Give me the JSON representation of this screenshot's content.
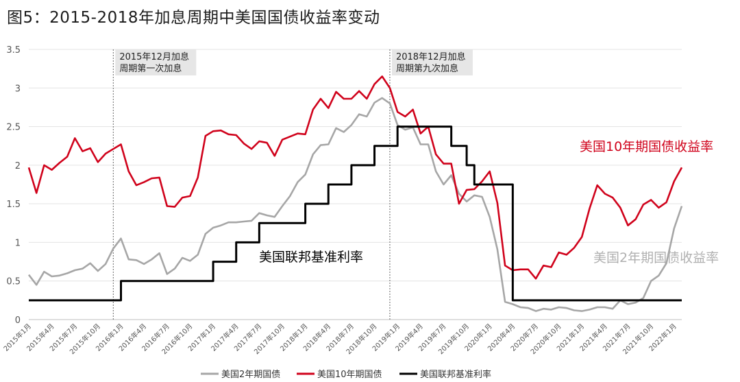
{
  "title": "图5：2015-2018年加息周期中美国国债收益率变动",
  "chart_data": {
    "type": "line",
    "title": "图5：2015-2018年加息周期中美国国债收益率变动",
    "ylim": [
      0,
      3.5
    ],
    "yticks": [
      "0",
      "0.5",
      "1",
      "1.5",
      "2",
      "2.5",
      "3",
      "3.5"
    ],
    "x_start": "2015年1月",
    "xtick_labels": [
      "2015年1月",
      "2015年4月",
      "2015年7月",
      "2015年10月",
      "2016年1月",
      "2016年4月",
      "2016年7月",
      "2016年10月",
      "2017年1月",
      "2017年4月",
      "2017年7月",
      "2017年10月",
      "2018年1月",
      "2018年4月",
      "2018年7月",
      "2018年10月",
      "2019年1月",
      "2019年4月",
      "2019年7月",
      "2019年10月",
      "2020年1月",
      "2020年4月",
      "2020年7月",
      "2020年10月",
      "2021年1月",
      "2021年4月",
      "2021年7月",
      "2021年10月",
      "2022年1月"
    ],
    "grid": "horizontal",
    "legend_position": "bottom",
    "series": [
      {
        "name": "美国2年期国债",
        "color": "#a6a6a6",
        "values": [
          0.58,
          0.45,
          0.62,
          0.56,
          0.57,
          0.6,
          0.64,
          0.66,
          0.73,
          0.63,
          0.72,
          0.92,
          1.05,
          0.78,
          0.77,
          0.72,
          0.78,
          0.86,
          0.59,
          0.66,
          0.8,
          0.76,
          0.84,
          1.11,
          1.19,
          1.22,
          1.26,
          1.26,
          1.27,
          1.28,
          1.38,
          1.35,
          1.33,
          1.47,
          1.6,
          1.78,
          1.88,
          2.14,
          2.26,
          2.27,
          2.48,
          2.43,
          2.52,
          2.66,
          2.63,
          2.81,
          2.87,
          2.8,
          2.52,
          2.46,
          2.49,
          2.27,
          2.27,
          1.92,
          1.75,
          1.87,
          1.63,
          1.53,
          1.61,
          1.59,
          1.33,
          0.91,
          0.23,
          0.2,
          0.16,
          0.15,
          0.11,
          0.14,
          0.13,
          0.16,
          0.15,
          0.12,
          0.11,
          0.13,
          0.16,
          0.16,
          0.14,
          0.25,
          0.2,
          0.22,
          0.28,
          0.5,
          0.57,
          0.73,
          1.18,
          1.47
        ]
      },
      {
        "name": "美国10年期国债",
        "color": "#d0021b",
        "values": [
          1.97,
          1.64,
          2.0,
          1.94,
          2.03,
          2.11,
          2.35,
          2.18,
          2.22,
          2.04,
          2.15,
          2.21,
          2.27,
          1.92,
          1.74,
          1.78,
          1.83,
          1.84,
          1.47,
          1.46,
          1.58,
          1.6,
          1.84,
          2.38,
          2.44,
          2.45,
          2.4,
          2.39,
          2.28,
          2.21,
          2.31,
          2.29,
          2.12,
          2.33,
          2.37,
          2.41,
          2.4,
          2.72,
          2.86,
          2.74,
          2.95,
          2.86,
          2.86,
          2.96,
          2.86,
          3.05,
          3.15,
          3.0,
          2.69,
          2.63,
          2.72,
          2.41,
          2.5,
          2.14,
          2.02,
          2.02,
          1.5,
          1.68,
          1.69,
          1.79,
          1.92,
          1.51,
          0.7,
          0.64,
          0.65,
          0.65,
          0.53,
          0.7,
          0.68,
          0.87,
          0.84,
          0.93,
          1.07,
          1.44,
          1.74,
          1.63,
          1.58,
          1.45,
          1.22,
          1.3,
          1.49,
          1.55,
          1.45,
          1.52,
          1.79,
          1.97
        ]
      },
      {
        "name": "美国联邦基准利率",
        "color": "#000000",
        "values": [
          0.25,
          0.25,
          0.25,
          0.25,
          0.25,
          0.25,
          0.25,
          0.25,
          0.25,
          0.25,
          0.25,
          0.25,
          0.5,
          0.5,
          0.5,
          0.5,
          0.5,
          0.5,
          0.5,
          0.5,
          0.5,
          0.5,
          0.5,
          0.5,
          0.75,
          0.75,
          0.75,
          1.0,
          1.0,
          1.0,
          1.25,
          1.25,
          1.25,
          1.25,
          1.25,
          1.25,
          1.5,
          1.5,
          1.5,
          1.75,
          1.75,
          1.75,
          2.0,
          2.0,
          2.0,
          2.25,
          2.25,
          2.25,
          2.5,
          2.5,
          2.5,
          2.5,
          2.5,
          2.5,
          2.5,
          2.25,
          2.25,
          2.0,
          1.75,
          1.75,
          1.75,
          1.75,
          1.75,
          0.25,
          0.25,
          0.25,
          0.25,
          0.25,
          0.25,
          0.25,
          0.25,
          0.25,
          0.25,
          0.25,
          0.25,
          0.25,
          0.25,
          0.25,
          0.25,
          0.25,
          0.25,
          0.25,
          0.25,
          0.25,
          0.25,
          0.25
        ]
      }
    ],
    "annotations": {
      "hike1": {
        "line1": "2015年12月加息",
        "line2": "周期第一次加息",
        "x_index": 11
      },
      "hike9": {
        "line1": "2018年12月加息",
        "line2": "周期第九次加息",
        "x_index": 47
      }
    },
    "inline_labels": {
      "ten_year": "美国10年期国债收益率",
      "two_year": "美国2年期国债收益率",
      "fed_rate": "美国联邦基准利率"
    }
  },
  "legend": [
    {
      "label": "美国2年期国债",
      "color": "#a6a6a6"
    },
    {
      "label": "美国10年期国债",
      "color": "#d0021b"
    },
    {
      "label": "美国联邦基准利率",
      "color": "#000000"
    }
  ]
}
